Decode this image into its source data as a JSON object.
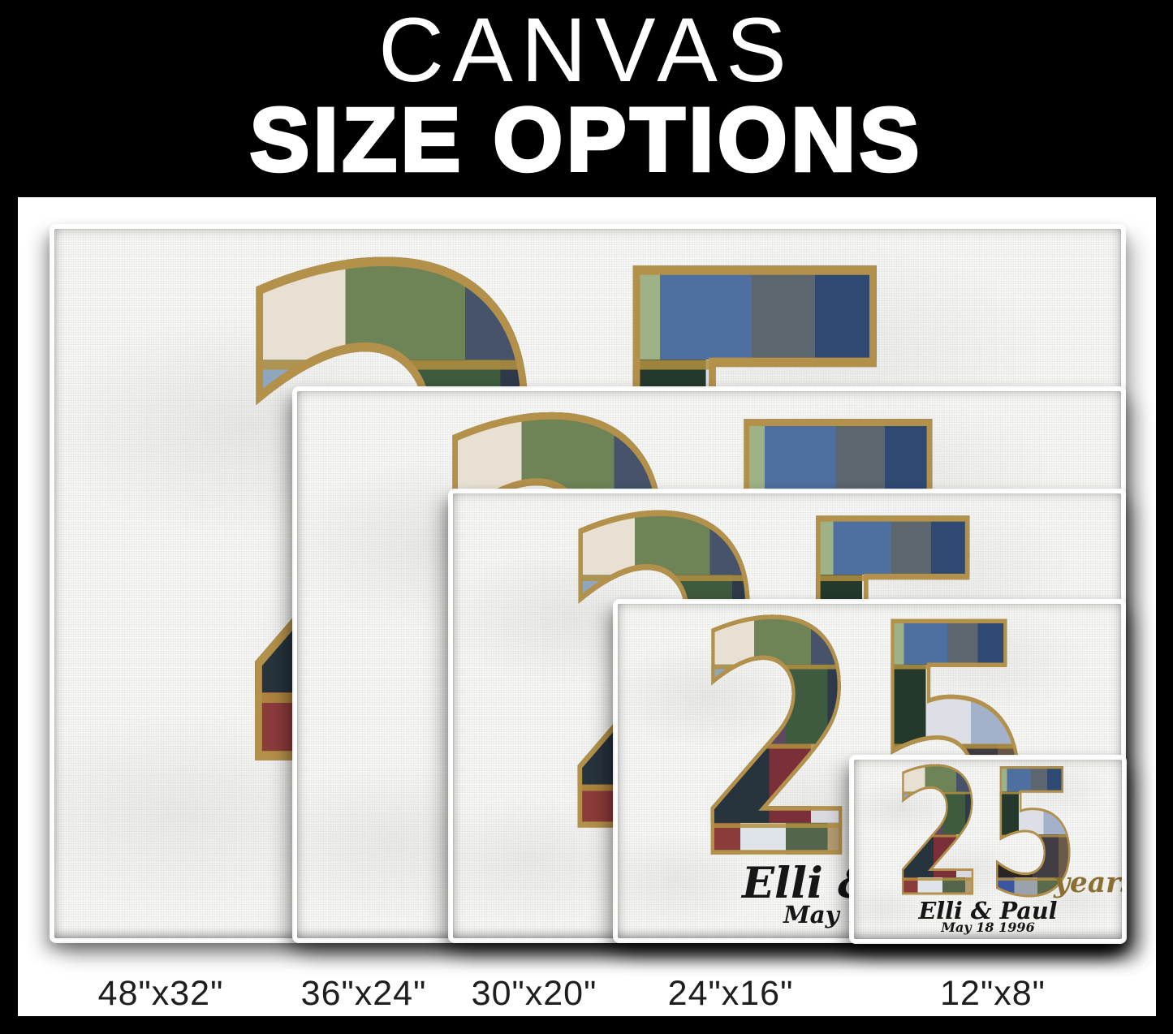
{
  "title": {
    "line1": "CANVAS",
    "line2": "SIZE OPTIONS"
  },
  "collage": {
    "number": "25",
    "digit_left": "2",
    "digit_right": "5",
    "years_text": "years",
    "couple_names": "Elli & Paul",
    "anniversary_date": "May 18 1996"
  },
  "canvases": [
    {
      "size": "48x32",
      "label": "48\"x32\""
    },
    {
      "size": "36x24",
      "label": "36\"x24\""
    },
    {
      "size": "30x20",
      "label": "30\"x20\""
    },
    {
      "size": "24x16",
      "label": "24\"x16\""
    },
    {
      "size": "12x8",
      "label": "12\"x8\""
    }
  ],
  "colors": {
    "background": "#000000",
    "panel": "#ffffff",
    "canvas_face": "#f6f6f4",
    "digit_outline_gold": "#b3914a",
    "years_gold": "#8a6f33",
    "label_text": "#1e1e1e",
    "title_text": "#ffffff"
  }
}
